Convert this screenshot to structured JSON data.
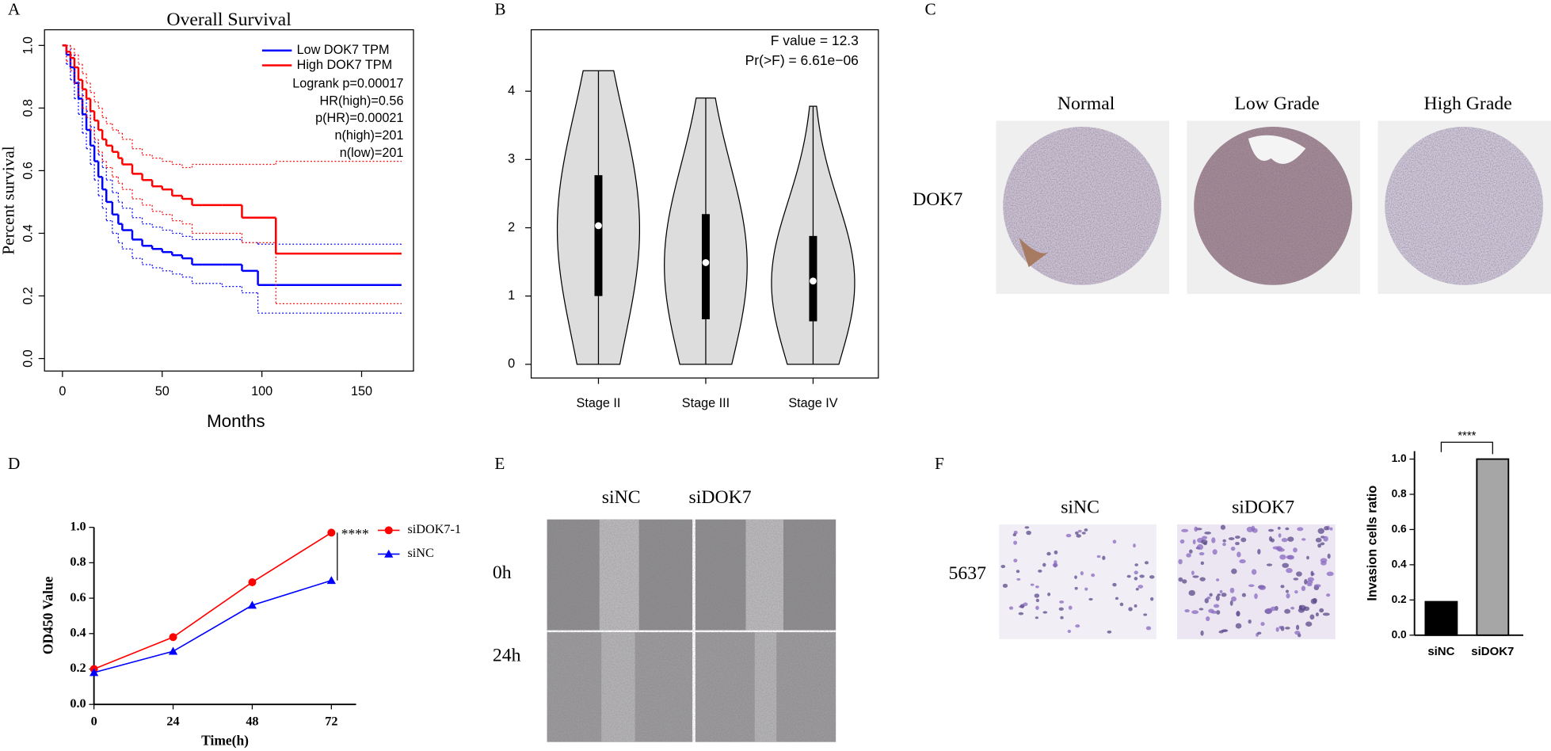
{
  "panel_labels": [
    "A",
    "B",
    "C",
    "D",
    "E",
    "F"
  ],
  "chart_data": [
    {
      "type": "survival",
      "title": "Overall Survival",
      "x_label": "Months",
      "y_label": "Percent survival",
      "xlim": [
        -9,
        176
      ],
      "ylim": [
        -0.04,
        1.05
      ],
      "xticks": [
        0,
        50,
        100,
        150
      ],
      "yticks": [
        {
          "value": 0,
          "label": "0.0"
        },
        0.2,
        0.4,
        0.6,
        0.8,
        {
          "value": 1,
          "label": "1.0"
        }
      ],
      "legend": "top-right",
      "annotations": [
        "Logrank p=0.00017",
        "HR(high)=0.56",
        "p(HR)=0.00021",
        "n(high)=201",
        "n(low)=201"
      ],
      "series": [
        {
          "name": "Low DOK7 TPM",
          "color": "#0000ff",
          "x": [
            0,
            2,
            4,
            6,
            8,
            10,
            12,
            14,
            16,
            18,
            20,
            22,
            25,
            28,
            30,
            35,
            40,
            45,
            50,
            55,
            60,
            65,
            70,
            80,
            90,
            98,
            170
          ],
          "values": [
            1.0,
            0.97,
            0.93,
            0.88,
            0.83,
            0.78,
            0.73,
            0.68,
            0.63,
            0.58,
            0.54,
            0.5,
            0.46,
            0.43,
            0.41,
            0.38,
            0.36,
            0.35,
            0.34,
            0.33,
            0.32,
            0.3,
            0.3,
            0.3,
            0.28,
            0.235,
            0.235
          ],
          "ci_lower": [
            1.0,
            0.94,
            0.89,
            0.83,
            0.78,
            0.72,
            0.67,
            0.62,
            0.57,
            0.52,
            0.48,
            0.44,
            0.4,
            0.37,
            0.35,
            0.32,
            0.3,
            0.29,
            0.28,
            0.27,
            0.26,
            0.24,
            0.24,
            0.23,
            0.21,
            0.145,
            0.145
          ],
          "ci_upper": [
            1.0,
            1.0,
            0.97,
            0.93,
            0.88,
            0.84,
            0.79,
            0.74,
            0.69,
            0.65,
            0.61,
            0.57,
            0.53,
            0.5,
            0.48,
            0.45,
            0.43,
            0.42,
            0.41,
            0.4,
            0.39,
            0.38,
            0.38,
            0.38,
            0.37,
            0.365,
            0.365
          ]
        },
        {
          "name": "High DOK7 TPM",
          "color": "#ff0000",
          "x": [
            0,
            2,
            4,
            6,
            8,
            10,
            12,
            14,
            16,
            18,
            20,
            22,
            25,
            28,
            30,
            35,
            40,
            45,
            50,
            55,
            60,
            65,
            70,
            80,
            90,
            107,
            170
          ],
          "values": [
            1.0,
            0.98,
            0.96,
            0.93,
            0.89,
            0.86,
            0.83,
            0.79,
            0.76,
            0.73,
            0.7,
            0.68,
            0.66,
            0.64,
            0.62,
            0.59,
            0.57,
            0.55,
            0.54,
            0.52,
            0.51,
            0.49,
            0.49,
            0.49,
            0.45,
            0.335,
            0.335
          ],
          "ci_lower": [
            1.0,
            0.95,
            0.92,
            0.88,
            0.84,
            0.8,
            0.77,
            0.73,
            0.7,
            0.66,
            0.63,
            0.61,
            0.58,
            0.56,
            0.54,
            0.51,
            0.49,
            0.47,
            0.46,
            0.44,
            0.43,
            0.4,
            0.4,
            0.4,
            0.37,
            0.175,
            0.175
          ],
          "ci_upper": [
            1.0,
            1.0,
            0.99,
            0.97,
            0.94,
            0.91,
            0.88,
            0.85,
            0.82,
            0.8,
            0.77,
            0.75,
            0.73,
            0.72,
            0.7,
            0.67,
            0.65,
            0.64,
            0.63,
            0.62,
            0.61,
            0.62,
            0.62,
            0.62,
            0.62,
            0.63,
            0.63
          ]
        }
      ]
    },
    {
      "type": "violin",
      "annotations": [
        "F value = 12.3",
        "Pr(>F) = 6.61e−06"
      ],
      "categories": [
        "Stage II",
        "Stage III",
        "Stage IV"
      ],
      "min": [
        0,
        0,
        0
      ],
      "q1": [
        1.0,
        0.66,
        0.63
      ],
      "median": [
        2.03,
        1.49,
        1.22
      ],
      "q3": [
        2.77,
        2.2,
        1.88
      ],
      "max": [
        4.3,
        3.9,
        3.78
      ],
      "color": "#dddddd",
      "ylim": [
        -0.2,
        4.9
      ],
      "yticks": [
        0,
        1,
        2,
        3,
        4
      ]
    },
    {
      "type": "line",
      "x_label": "Time(h)",
      "y_label": "OD450 Value",
      "x": [
        0,
        24,
        48,
        72
      ],
      "xlim": [
        0,
        79.5
      ],
      "xticks": [
        0,
        24,
        48,
        72
      ],
      "ylim": [
        0,
        1
      ],
      "yticks": [
        {
          "value": 0,
          "label": "0.0"
        },
        0.2,
        0.4,
        0.6,
        0.8,
        {
          "value": 1,
          "label": "1.0"
        }
      ],
      "annotations": [
        "****"
      ],
      "series": [
        {
          "name": "siDOK7-1",
          "color": "#ff0000",
          "marker": "circle",
          "values": [
            0.2,
            0.38,
            0.69,
            0.97
          ]
        },
        {
          "name": "siNC",
          "color": "#0000ff",
          "marker": "triangle",
          "values": [
            0.18,
            0.3,
            0.56,
            0.7
          ]
        }
      ]
    },
    {
      "type": "bar",
      "y_label": "Invasion cells ratio",
      "categories": [
        "siNC",
        "siDOK7"
      ],
      "values": [
        0.19,
        1.0
      ],
      "colors": [
        "#000000",
        "#a6a6a6"
      ],
      "ylim": [
        0,
        1.045
      ],
      "yticks": [
        {
          "value": 0,
          "label": "0.0"
        },
        0.2,
        0.4,
        0.6,
        0.8,
        {
          "value": 1,
          "label": "1.0"
        }
      ],
      "annotations": [
        "****"
      ]
    }
  ],
  "panel_c": {
    "columns": [
      "Normal",
      "Low Grade",
      "High Grade"
    ],
    "row": "DOK7"
  },
  "panel_e": {
    "columns": [
      "siNC",
      "siDOK7"
    ],
    "rows": [
      "0h",
      "24h"
    ]
  },
  "panel_f": {
    "columns": [
      "siNC",
      "siDOK7"
    ],
    "row": "5637"
  }
}
